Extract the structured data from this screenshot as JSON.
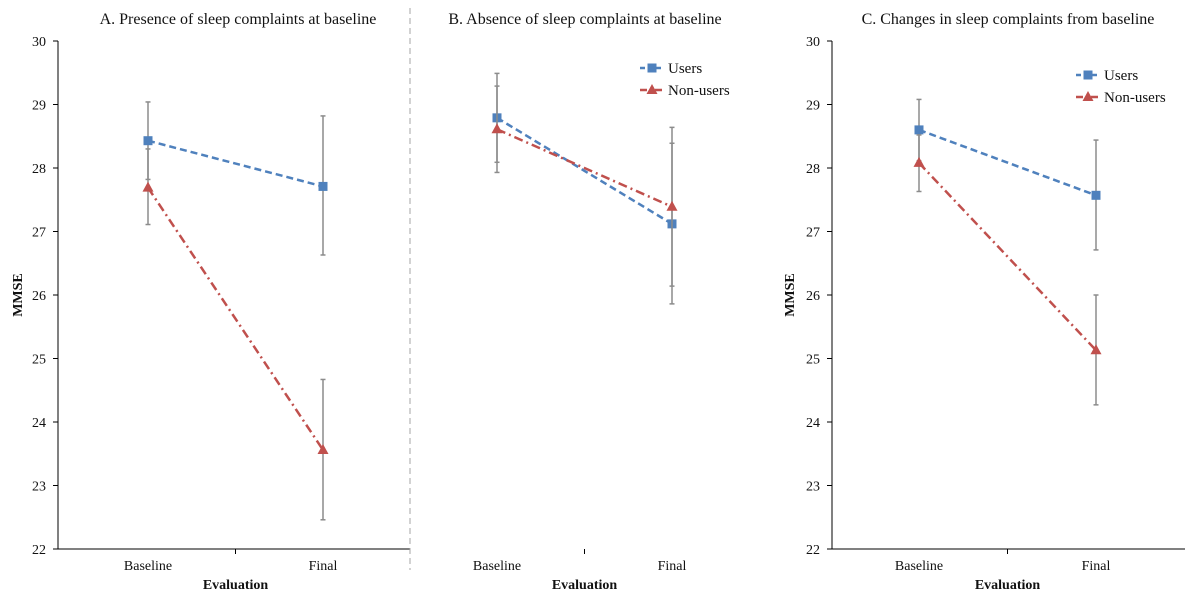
{
  "chart_data": [
    {
      "type": "line",
      "title": "A.  Presence of sleep complaints at baseline",
      "xlabel": "Evaluation",
      "ylabel": "MMSE",
      "categories": [
        "Baseline",
        "Final"
      ],
      "ylim": [
        22,
        30
      ],
      "yticks": [
        22,
        23,
        24,
        25,
        26,
        27,
        28,
        29,
        30
      ],
      "legend": "none",
      "series": [
        {
          "name": "Users",
          "color": "#4f81bd",
          "marker": "square",
          "dash": "dashed",
          "values": [
            28.43,
            27.71
          ],
          "error_low": [
            27.82,
            26.63
          ],
          "error_high": [
            29.04,
            28.82
          ]
        },
        {
          "name": "Non-users",
          "color": "#c0504d",
          "marker": "triangle",
          "dash": "dash-dot",
          "values": [
            27.69,
            23.56
          ],
          "error_low": [
            27.11,
            22.46
          ],
          "error_high": [
            28.3,
            24.67
          ]
        }
      ]
    },
    {
      "type": "line",
      "title": "B.  Absence of sleep complaints at baseline",
      "xlabel": "Evaluation",
      "ylabel": "",
      "categories": [
        "Baseline",
        "Final"
      ],
      "ylim": [
        22,
        30
      ],
      "yticks": [],
      "legend": "top-right",
      "series": [
        {
          "name": "Users",
          "color": "#4f81bd",
          "marker": "square",
          "dash": "dashed",
          "values": [
            28.79,
            27.12
          ],
          "error_low": [
            28.09,
            25.86
          ],
          "error_high": [
            29.49,
            28.39
          ]
        },
        {
          "name": "Non-users",
          "color": "#c0504d",
          "marker": "triangle",
          "dash": "dash-dot",
          "values": [
            28.61,
            27.39
          ],
          "error_low": [
            27.93,
            26.14
          ],
          "error_high": [
            29.29,
            28.64
          ]
        }
      ]
    },
    {
      "type": "line",
      "title": "C.  Changes in sleep complaints from baseline",
      "xlabel": "Evaluation",
      "ylabel": "MMSE",
      "categories": [
        "Baseline",
        "Final"
      ],
      "ylim": [
        22,
        30
      ],
      "yticks": [
        22,
        23,
        24,
        25,
        26,
        27,
        28,
        29,
        30
      ],
      "legend": "top-right",
      "series": [
        {
          "name": "Users",
          "color": "#4f81bd",
          "marker": "square",
          "dash": "dashed",
          "values": [
            28.6,
            27.57
          ],
          "error_low": [
            28.11,
            26.71
          ],
          "error_high": [
            29.08,
            28.44
          ]
        },
        {
          "name": "Non-users",
          "color": "#c0504d",
          "marker": "triangle",
          "dash": "dash-dot",
          "values": [
            28.08,
            25.13
          ],
          "error_low": [
            27.63,
            24.27
          ],
          "error_high": [
            28.52,
            26.0
          ]
        }
      ]
    }
  ]
}
